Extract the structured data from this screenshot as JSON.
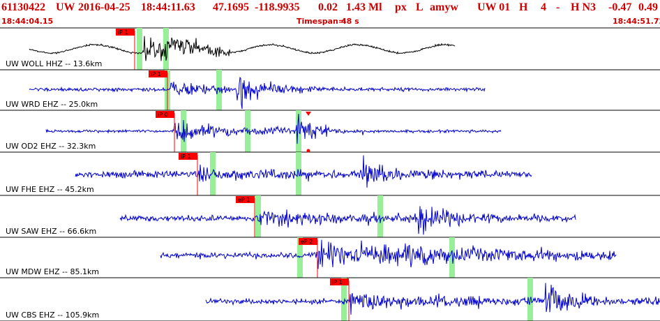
{
  "header": {
    "event_id": "61130422",
    "network": "UW",
    "date": "2016-04-25",
    "time": "18:44:11.63",
    "lat": "47.1695",
    "lon": "-118.9935",
    "depth": "0.02",
    "magnitude": "1.43 Ml",
    "etype": "px",
    "flag": "L",
    "analyst": "amyw",
    "src": "UW 01",
    "h": "H",
    "n": "4",
    "dash": "-",
    "hn3": "H N3",
    "v1": "-0.47",
    "v2": "0.49"
  },
  "subheader": {
    "start_time": "18:44:04.15",
    "timespan_label": "Timespan=",
    "timespan_value": "48 s",
    "end_time": "18:44:51.72"
  },
  "colors": {
    "header_text": "#cc0000",
    "first_trace": "#000000",
    "traces": "#0000cc",
    "pick_flag": "#ff0000",
    "window_marker": "#99ee99",
    "separator": "#000000"
  },
  "traces": [
    {
      "label": "UW WOLL HHZ -- 13.6km",
      "pick": "iP 1",
      "color": "black"
    },
    {
      "label": "UW WRD EHZ -- 25.0km",
      "pick": "iP 1",
      "color": "blue"
    },
    {
      "label": "UW OD2 EHZ -- 32.3km",
      "pick": "iP 0",
      "color": "blue"
    },
    {
      "label": "UW FHE EHZ -- 45.2km",
      "pick": "iP 1",
      "color": "blue"
    },
    {
      "label": "UW SAW EHZ -- 66.6km",
      "pick": "eP 1",
      "color": "blue"
    },
    {
      "label": "UW MDW EHZ -- 85.1km",
      "pick": "eP 2",
      "color": "blue"
    },
    {
      "label": "UW CBS EHZ -- 105.9km",
      "pick": "iP 1",
      "color": "blue"
    }
  ]
}
